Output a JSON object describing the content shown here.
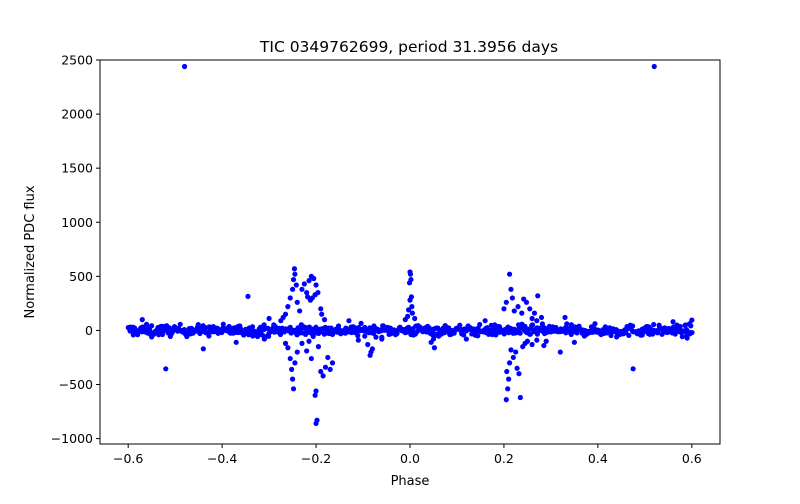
{
  "chart_data": {
    "type": "scatter",
    "title": "TIC 0349762699, period 31.3956 days",
    "xlabel": "Phase",
    "ylabel": "Normalized PDC flux",
    "xlim": [
      -0.66,
      0.66
    ],
    "ylim": [
      -1050,
      2500
    ],
    "xticks": [
      -0.6,
      -0.4,
      -0.2,
      0.0,
      0.2,
      0.4,
      0.6
    ],
    "xtick_labels": [
      "−0.6",
      "−0.4",
      "−0.2",
      "0.0",
      "0.2",
      "0.4",
      "0.6"
    ],
    "yticks": [
      -1000,
      -500,
      0,
      500,
      1000,
      1500,
      2000,
      2500
    ],
    "ytick_labels": [
      "−1000",
      "−500",
      "0",
      "500",
      "1000",
      "1500",
      "2000",
      "2500"
    ],
    "color": "#0000ff",
    "baseline": {
      "x_range": [
        -0.6,
        0.6
      ],
      "scatter_sigma": 25
    },
    "series": [
      {
        "name": "flux",
        "points": [
          [
            -0.48,
            2440
          ],
          [
            0.52,
            2440
          ],
          [
            -0.52,
            -355
          ],
          [
            0.475,
            -355
          ],
          [
            -0.345,
            315
          ],
          [
            -0.44,
            -170
          ],
          [
            -0.31,
            -80
          ],
          [
            -0.37,
            -110
          ],
          [
            -0.246,
            570
          ],
          [
            -0.245,
            520
          ],
          [
            -0.248,
            470
          ],
          [
            -0.242,
            420
          ],
          [
            -0.25,
            380
          ],
          [
            -0.255,
            300
          ],
          [
            -0.24,
            260
          ],
          [
            -0.26,
            220
          ],
          [
            -0.235,
            180
          ],
          [
            -0.265,
            150
          ],
          [
            -0.27,
            120
          ],
          [
            -0.275,
            90
          ],
          [
            -0.25,
            -450
          ],
          [
            -0.248,
            -540
          ],
          [
            -0.252,
            -360
          ],
          [
            -0.245,
            -300
          ],
          [
            -0.255,
            -260
          ],
          [
            -0.24,
            -200
          ],
          [
            -0.26,
            -160
          ],
          [
            -0.265,
            -120
          ],
          [
            -0.23,
            380
          ],
          [
            -0.225,
            430
          ],
          [
            -0.22,
            350
          ],
          [
            -0.215,
            460
          ],
          [
            -0.21,
            500
          ],
          [
            -0.205,
            480
          ],
          [
            -0.2,
            420
          ],
          [
            -0.202,
            330
          ],
          [
            -0.208,
            300
          ],
          [
            -0.212,
            280
          ],
          [
            -0.218,
            310
          ],
          [
            -0.196,
            350
          ],
          [
            -0.19,
            200
          ],
          [
            -0.188,
            150
          ],
          [
            -0.182,
            100
          ],
          [
            -0.2,
            -860
          ],
          [
            -0.198,
            -830
          ],
          [
            -0.202,
            -600
          ],
          [
            -0.2,
            -560
          ],
          [
            -0.19,
            -380
          ],
          [
            -0.185,
            -420
          ],
          [
            -0.18,
            -340
          ],
          [
            -0.21,
            -260
          ],
          [
            -0.22,
            -190
          ],
          [
            -0.17,
            -360
          ],
          [
            -0.165,
            -300
          ],
          [
            -0.175,
            -250
          ],
          [
            -0.23,
            -120
          ],
          [
            -0.195,
            -150
          ],
          [
            -0.215,
            -100
          ],
          [
            -0.085,
            -230
          ],
          [
            -0.083,
            -200
          ],
          [
            -0.09,
            -130
          ],
          [
            -0.08,
            -170
          ],
          [
            -0.11,
            -90
          ],
          [
            -0.06,
            -80
          ],
          [
            0.0,
            540
          ],
          [
            0.001,
            520
          ],
          [
            0.002,
            470
          ],
          [
            -0.001,
            440
          ],
          [
            0.003,
            310
          ],
          [
            0.0,
            280
          ],
          [
            0.004,
            220
          ],
          [
            -0.003,
            190
          ],
          [
            0.005,
            160
          ],
          [
            -0.005,
            130
          ],
          [
            0.01,
            110
          ],
          [
            -0.01,
            100
          ],
          [
            0.045,
            -110
          ],
          [
            0.05,
            -80
          ],
          [
            0.052,
            -160
          ],
          [
            0.205,
            -640
          ],
          [
            0.235,
            -620
          ],
          [
            0.208,
            -540
          ],
          [
            0.21,
            -450
          ],
          [
            0.206,
            -380
          ],
          [
            0.212,
            -300
          ],
          [
            0.22,
            -250
          ],
          [
            0.225,
            -200
          ],
          [
            0.228,
            -350
          ],
          [
            0.232,
            -400
          ],
          [
            0.215,
            -180
          ],
          [
            0.24,
            -150
          ],
          [
            0.245,
            -120
          ],
          [
            0.25,
            -100
          ],
          [
            0.26,
            -130
          ],
          [
            0.27,
            -90
          ],
          [
            0.212,
            520
          ],
          [
            0.215,
            380
          ],
          [
            0.218,
            300
          ],
          [
            0.205,
            260
          ],
          [
            0.2,
            200
          ],
          [
            0.222,
            180
          ],
          [
            0.23,
            220
          ],
          [
            0.238,
            160
          ],
          [
            0.242,
            290
          ],
          [
            0.248,
            260
          ],
          [
            0.255,
            200
          ],
          [
            0.265,
            160
          ],
          [
            0.272,
            320
          ],
          [
            0.28,
            120
          ],
          [
            0.27,
            90
          ],
          [
            0.26,
            110
          ],
          [
            0.285,
            -140
          ],
          [
            0.29,
            -100
          ],
          [
            0.32,
            -200
          ],
          [
            0.33,
            120
          ],
          [
            0.35,
            -110
          ],
          [
            0.12,
            -80
          ],
          [
            0.16,
            90
          ],
          [
            -0.13,
            90
          ],
          [
            -0.3,
            110
          ],
          [
            -0.57,
            100
          ],
          [
            -0.55,
            -60
          ],
          [
            0.56,
            80
          ],
          [
            0.59,
            -70
          ],
          [
            0.6,
            95
          ],
          [
            -0.59,
            30
          ],
          [
            0.44,
            -60
          ]
        ]
      }
    ]
  }
}
